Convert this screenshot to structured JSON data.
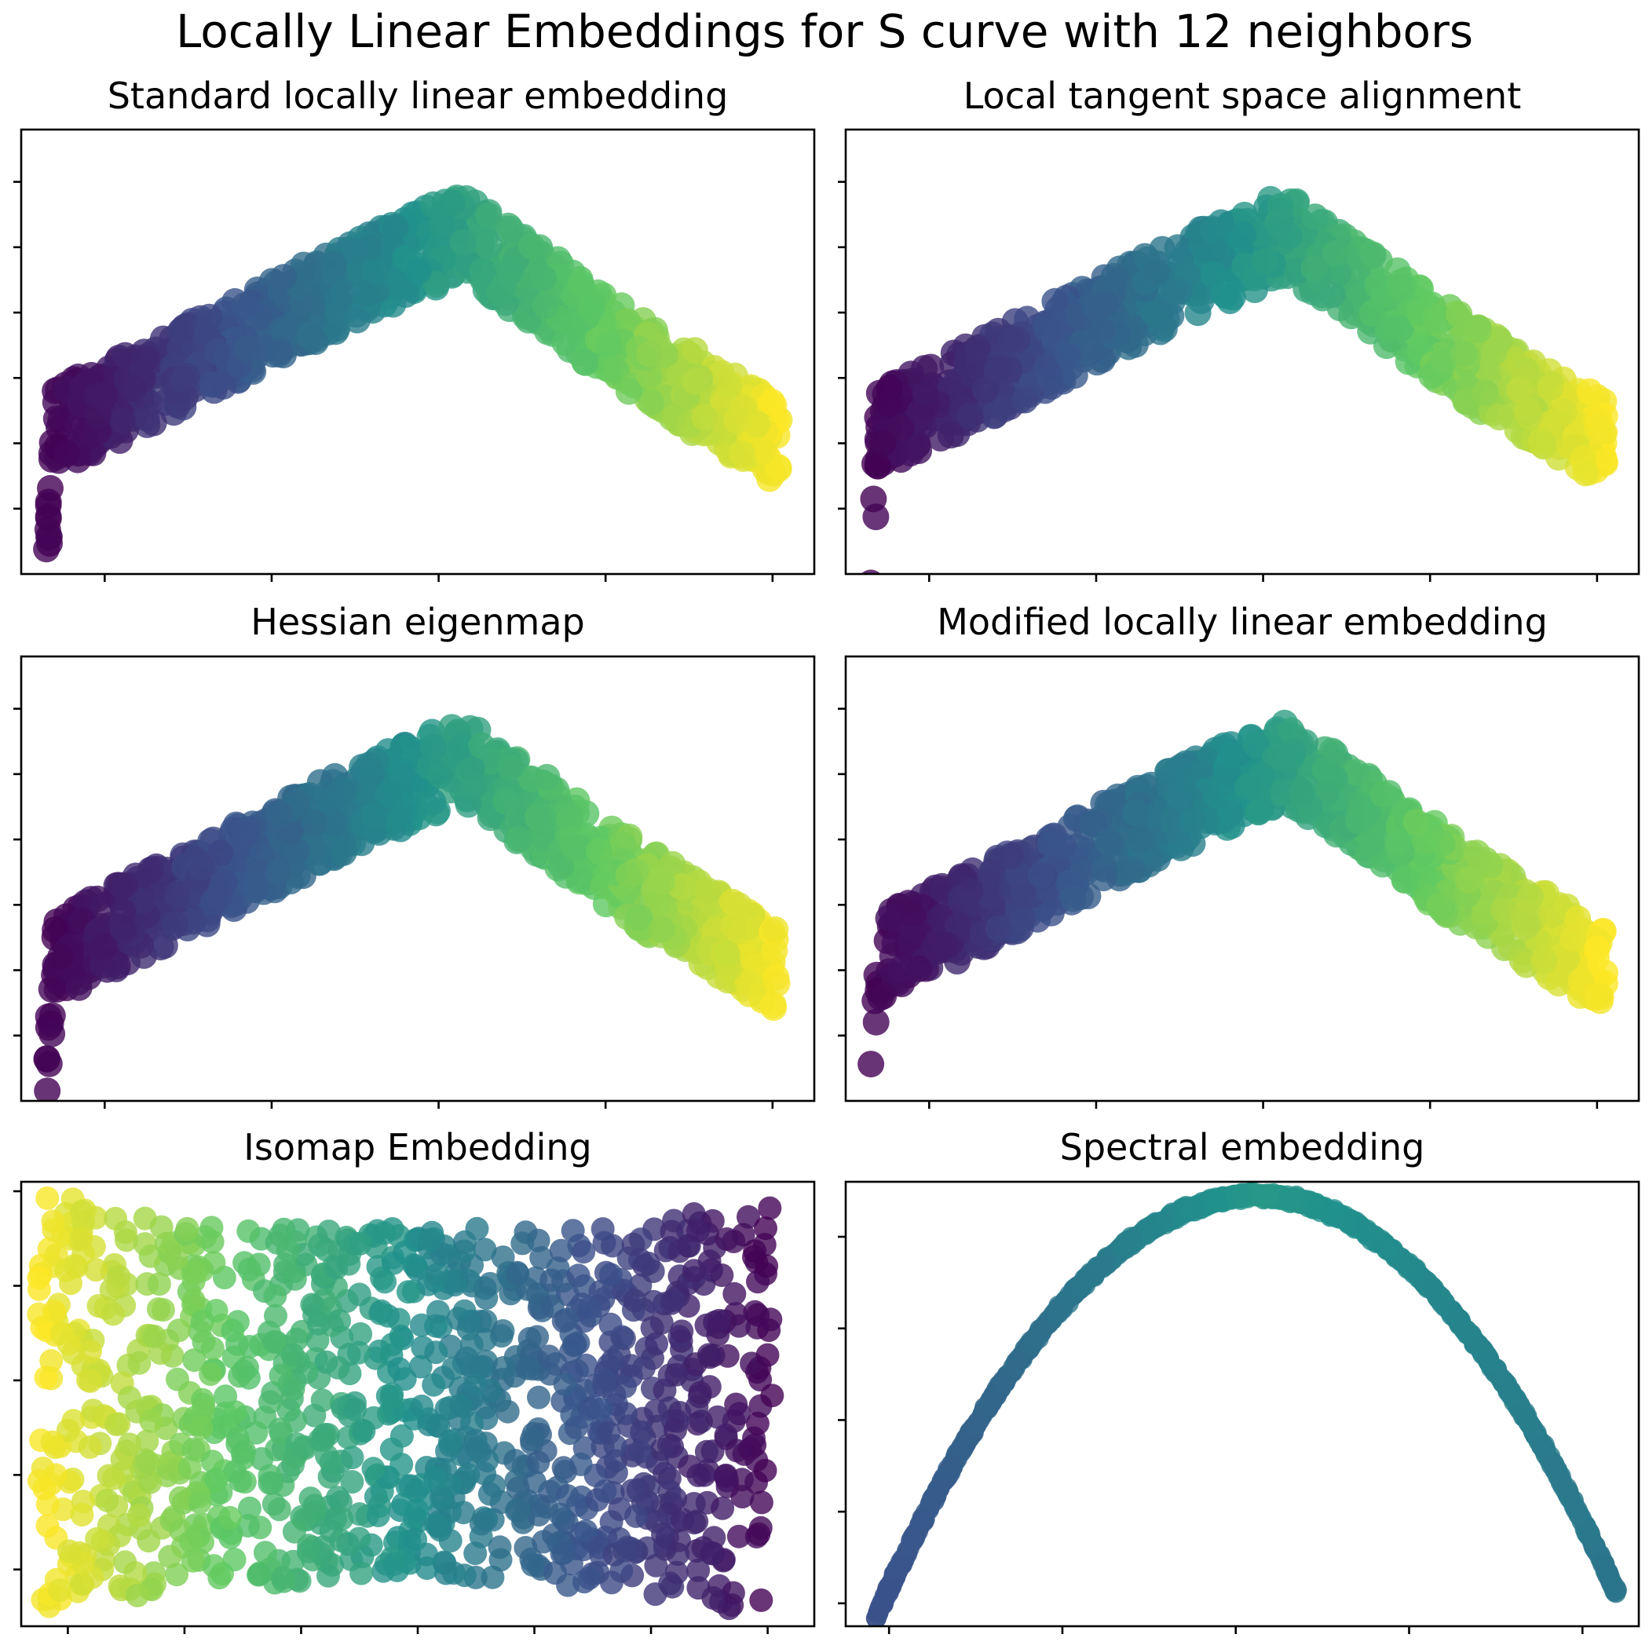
{
  "figure": {
    "title": "Locally Linear Embeddings for S curve with 12 neighbors"
  },
  "colormap": {
    "name": "viridis",
    "stops": [
      "#440154",
      "#3b528b",
      "#21918c",
      "#5ec962",
      "#fde725"
    ]
  },
  "chart_data": [
    {
      "type": "scatter",
      "title": "Standard locally linear embedding",
      "shape": "arch",
      "xlabel": "",
      "ylabel": "",
      "xlim": [
        -0.05,
        0.045
      ],
      "ylim": [
        -0.02,
        0.048
      ],
      "xticks": [
        -0.04,
        -0.02,
        0.0,
        0.02,
        0.04
      ],
      "yticks": [
        -0.01,
        0.0,
        0.01,
        0.02,
        0.03,
        0.04
      ],
      "tick_labels_visible": false,
      "grid": false,
      "color_by": "position along S curve (viridis)",
      "ridge": [
        [
          -0.047,
          -0.016
        ],
        [
          -0.046,
          0.002
        ],
        [
          -0.03,
          0.012
        ],
        [
          -0.01,
          0.025
        ],
        [
          0.003,
          0.032
        ],
        [
          0.013,
          0.023
        ],
        [
          0.025,
          0.012
        ],
        [
          0.041,
          0.0
        ]
      ],
      "band_thickness": 0.013,
      "peak_x": 0.003
    },
    {
      "type": "scatter",
      "title": "Local tangent space alignment",
      "shape": "arch",
      "xlabel": "",
      "ylabel": "",
      "xlim": [
        -0.05,
        0.045
      ],
      "ylim": [
        -0.02,
        0.048
      ],
      "xticks": [
        -0.04,
        -0.02,
        0.0,
        0.02,
        0.04
      ],
      "yticks": [
        -0.01,
        0.0,
        0.01,
        0.02,
        0.03,
        0.04
      ],
      "tick_labels_visible": false,
      "grid": false,
      "color_by": "position along S curve (viridis)",
      "ridge": [
        [
          -0.047,
          -0.016
        ],
        [
          -0.046,
          0.002
        ],
        [
          -0.03,
          0.012
        ],
        [
          -0.01,
          0.025
        ],
        [
          0.003,
          0.032
        ],
        [
          0.013,
          0.023
        ],
        [
          0.025,
          0.012
        ],
        [
          0.041,
          0.0
        ]
      ],
      "band_thickness": 0.013,
      "peak_x": 0.003
    },
    {
      "type": "scatter",
      "title": "Hessian eigenmap",
      "shape": "arch",
      "xlabel": "",
      "ylabel": "",
      "xlim": [
        -0.05,
        0.045
      ],
      "ylim": [
        -0.02,
        0.048
      ],
      "xticks": [
        -0.04,
        -0.02,
        0.0,
        0.02,
        0.04
      ],
      "yticks": [
        -0.01,
        0.0,
        0.01,
        0.02,
        0.03,
        0.04
      ],
      "tick_labels_visible": false,
      "grid": false,
      "color_by": "position along S curve (viridis)",
      "ridge": [
        [
          -0.047,
          -0.016
        ],
        [
          -0.046,
          0.002
        ],
        [
          -0.03,
          0.012
        ],
        [
          -0.01,
          0.025
        ],
        [
          0.003,
          0.032
        ],
        [
          0.013,
          0.023
        ],
        [
          0.025,
          0.012
        ],
        [
          0.041,
          0.0
        ]
      ],
      "band_thickness": 0.013,
      "peak_x": 0.003
    },
    {
      "type": "scatter",
      "title": "Modified locally linear embedding",
      "shape": "arch",
      "xlabel": "",
      "ylabel": "",
      "xlim": [
        -0.05,
        0.045
      ],
      "ylim": [
        -0.02,
        0.048
      ],
      "xticks": [
        -0.04,
        -0.02,
        0.0,
        0.02,
        0.04
      ],
      "yticks": [
        -0.01,
        0.0,
        0.01,
        0.02,
        0.03,
        0.04
      ],
      "tick_labels_visible": false,
      "grid": false,
      "color_by": "position along S curve (viridis)",
      "ridge": [
        [
          -0.047,
          -0.016
        ],
        [
          -0.046,
          0.002
        ],
        [
          -0.03,
          0.012
        ],
        [
          -0.01,
          0.025
        ],
        [
          0.003,
          0.032
        ],
        [
          0.013,
          0.023
        ],
        [
          0.025,
          0.012
        ],
        [
          0.041,
          0.0
        ]
      ],
      "band_thickness": 0.013,
      "peak_x": 0.003
    },
    {
      "type": "scatter",
      "title": "Isomap Embedding",
      "shape": "rectangle",
      "xlabel": "",
      "ylabel": "",
      "xlim": [
        -3.4,
        3.4
      ],
      "ylim": [
        -2.6,
        2.1
      ],
      "xticks": [
        -3,
        -2,
        -1,
        0,
        1,
        2,
        3
      ],
      "yticks": [
        -2,
        -1,
        0,
        1,
        2
      ],
      "tick_labels_visible": false,
      "grid": false,
      "color_by": "position along S curve (viridis, reversed left-to-right)",
      "x_extent": [
        -3.25,
        3.05
      ],
      "top_edge": [
        [
          -3.25,
          2.0
        ],
        [
          -2.0,
          1.65
        ],
        [
          0.0,
          1.6
        ],
        [
          2.0,
          1.65
        ],
        [
          3.05,
          2.0
        ]
      ],
      "bottom_edge": [
        [
          -3.25,
          -2.45
        ],
        [
          -2.0,
          -2.2
        ],
        [
          0.0,
          -2.05
        ],
        [
          2.0,
          -2.25
        ],
        [
          3.05,
          -2.55
        ]
      ]
    },
    {
      "type": "scatter",
      "title": "Spectral embedding",
      "shape": "parabola",
      "xlabel": "",
      "ylabel": "",
      "xlim": [
        -0.009,
        0.0093
      ],
      "ylim": [
        -0.0045,
        0.0052
      ],
      "xticks": [
        -0.008,
        -0.004,
        0.0,
        0.004,
        0.008
      ],
      "yticks": [
        -0.004,
        -0.002,
        0.0,
        0.002,
        0.004
      ],
      "tick_labels_visible": false,
      "grid": false,
      "color_by": "position along S curve (viridis, center band only)",
      "vertex": [
        0.0005,
        0.0049
      ],
      "x_extent": [
        -0.0083,
        0.0088
      ],
      "y_at_ends": [
        -0.0043,
        -0.0038
      ]
    }
  ]
}
